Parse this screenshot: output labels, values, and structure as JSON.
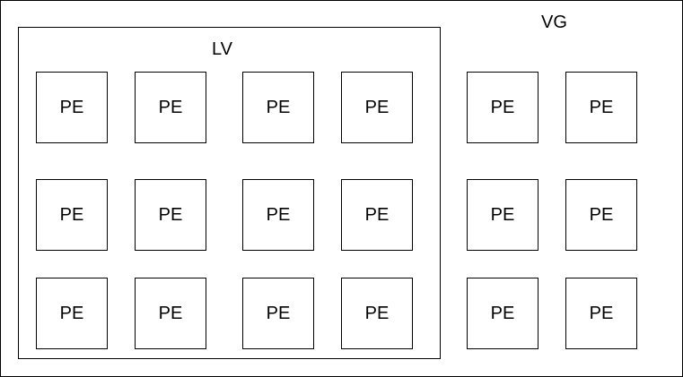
{
  "volume_group": {
    "label": "VG"
  },
  "logical_volume": {
    "label": "LV",
    "extents": [
      {
        "label": "PE"
      },
      {
        "label": "PE"
      },
      {
        "label": "PE"
      },
      {
        "label": "PE"
      },
      {
        "label": "PE"
      },
      {
        "label": "PE"
      },
      {
        "label": "PE"
      },
      {
        "label": "PE"
      },
      {
        "label": "PE"
      },
      {
        "label": "PE"
      },
      {
        "label": "PE"
      },
      {
        "label": "PE"
      }
    ]
  },
  "free_extents": [
    {
      "label": "PE"
    },
    {
      "label": "PE"
    },
    {
      "label": "PE"
    },
    {
      "label": "PE"
    },
    {
      "label": "PE"
    },
    {
      "label": "PE"
    }
  ]
}
